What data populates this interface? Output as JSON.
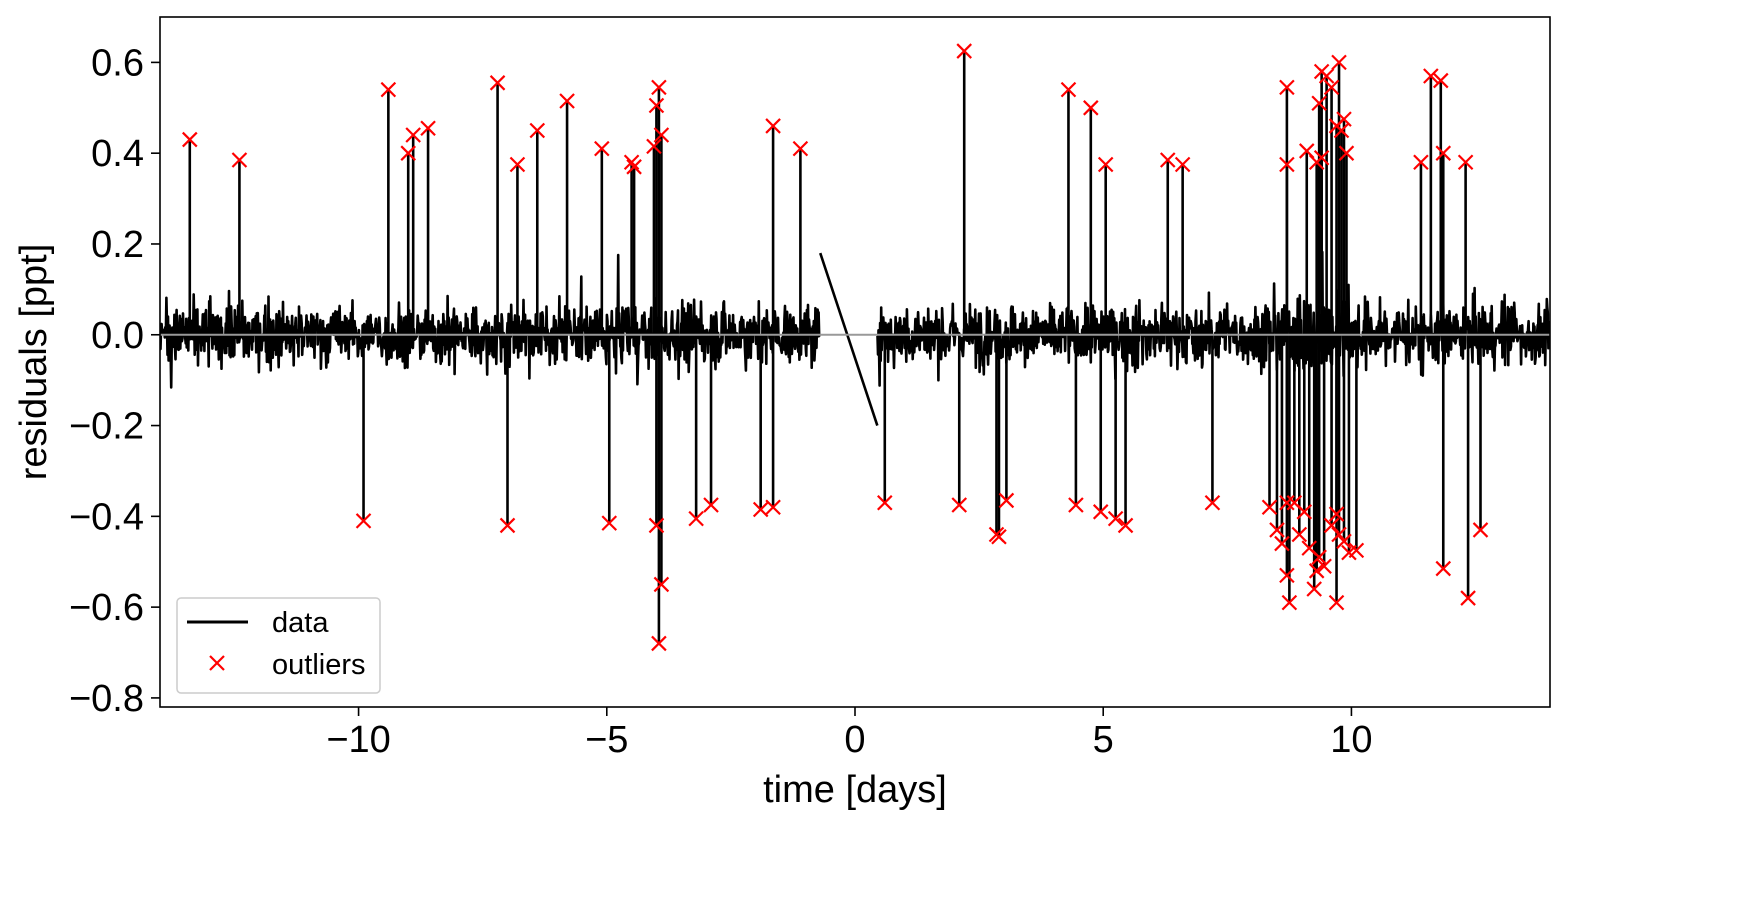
{
  "chart_data": {
    "type": "line",
    "xlabel": "time [days]",
    "ylabel": "residuals [ppt]",
    "xlim": [
      -14,
      14
    ],
    "ylim": [
      -0.82,
      0.7
    ],
    "x_ticks": [
      -10,
      -5,
      0,
      5,
      10
    ],
    "x_tick_labels": [
      "−10",
      "−5",
      "0",
      "5",
      "10"
    ],
    "y_ticks": [
      -0.8,
      -0.6,
      -0.4,
      -0.2,
      0.0,
      0.2,
      0.4,
      0.6
    ],
    "y_tick_labels": [
      "−0.8",
      "−0.6",
      "−0.4",
      "−0.2",
      "0.0",
      "0.2",
      "0.4",
      "0.6"
    ],
    "grid": false,
    "legend_position": "lower-left",
    "reference_line": {
      "y": 0.0,
      "color": "#999999"
    },
    "data_gap": [
      -0.7,
      0.45
    ],
    "series": [
      {
        "name": "data",
        "kind": "line",
        "color": "#000000",
        "description_points": "dense noisy residual light curve, roughly within ±0.3 ppt",
        "x": [
          -14.0,
          -12.0,
          -10.0,
          -8.0,
          -6.0,
          -4.0,
          -2.0,
          -0.7,
          0.45,
          2.0,
          4.0,
          6.0,
          8.0,
          10.0,
          12.0,
          14.0
        ],
        "y": [
          0.0,
          0.02,
          -0.01,
          0.03,
          -0.02,
          0.01,
          0.0,
          0.18,
          -0.2,
          0.02,
          -0.01,
          0.0,
          0.01,
          -0.02,
          0.0,
          0.01
        ]
      },
      {
        "name": "outliers",
        "kind": "scatter",
        "marker": "x",
        "color": "#ff0000",
        "x": [
          -13.4,
          -12.4,
          -9.4,
          -9.0,
          -8.9,
          -8.6,
          -7.2,
          -6.8,
          -6.4,
          -5.8,
          -5.1,
          -4.5,
          -4.45,
          -4.05,
          -4.0,
          -3.95,
          -3.9,
          -1.65,
          -1.1,
          -9.9,
          -7.0,
          -4.95,
          -4.0,
          -3.9,
          -3.95,
          -3.2,
          -2.9,
          -1.9,
          -1.65,
          2.2,
          4.3,
          4.75,
          5.05,
          6.3,
          6.6,
          8.7,
          8.7,
          9.1,
          9.3,
          9.4,
          9.5,
          9.6,
          9.7,
          9.75,
          9.8,
          9.85,
          9.9,
          9.35,
          9.4,
          11.4,
          11.6,
          11.8,
          11.85,
          12.3,
          0.6,
          2.1,
          2.85,
          2.9,
          3.05,
          4.45,
          4.95,
          5.25,
          5.45,
          7.2,
          8.35,
          8.5,
          8.6,
          8.7,
          8.75,
          8.85,
          8.95,
          9.05,
          9.15,
          9.25,
          9.35,
          9.45,
          9.6,
          9.7,
          9.75,
          9.85,
          9.95,
          10.1,
          11.85,
          12.35,
          12.6,
          8.7,
          9.3,
          9.7
        ],
        "y": [
          0.43,
          0.385,
          0.54,
          0.4,
          0.44,
          0.455,
          0.555,
          0.375,
          0.45,
          0.515,
          0.41,
          0.38,
          0.37,
          0.415,
          0.505,
          0.545,
          0.44,
          0.46,
          0.41,
          -0.41,
          -0.42,
          -0.415,
          -0.42,
          -0.55,
          -0.68,
          -0.405,
          -0.375,
          -0.385,
          -0.38,
          0.625,
          0.54,
          0.5,
          0.375,
          0.385,
          0.375,
          0.545,
          0.375,
          0.405,
          0.38,
          0.58,
          0.57,
          0.545,
          0.46,
          0.6,
          0.45,
          0.475,
          0.4,
          0.51,
          0.39,
          0.38,
          0.57,
          0.56,
          0.4,
          0.38,
          -0.37,
          -0.375,
          -0.44,
          -0.445,
          -0.365,
          -0.375,
          -0.39,
          -0.405,
          -0.42,
          -0.37,
          -0.38,
          -0.43,
          -0.46,
          -0.53,
          -0.59,
          -0.37,
          -0.44,
          -0.39,
          -0.47,
          -0.56,
          -0.49,
          -0.51,
          -0.42,
          -0.395,
          -0.44,
          -0.455,
          -0.48,
          -0.475,
          -0.515,
          -0.58,
          -0.43,
          -0.37,
          -0.52,
          -0.59
        ]
      }
    ]
  }
}
